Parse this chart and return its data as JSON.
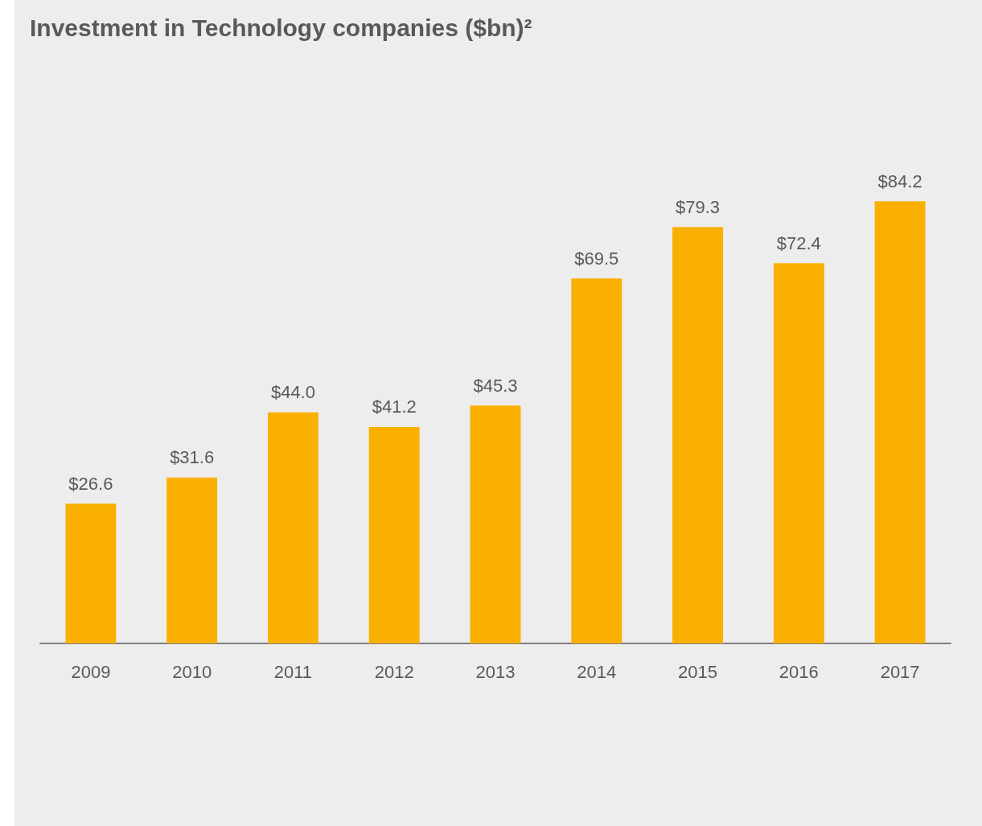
{
  "chart_data": {
    "type": "bar",
    "title": "Investment in Technology companies ($bn)²",
    "categories": [
      "2009",
      "2010",
      "2011",
      "2012",
      "2013",
      "2014",
      "2015",
      "2016",
      "2017"
    ],
    "values": [
      26.6,
      31.6,
      44.0,
      41.2,
      45.3,
      69.5,
      79.3,
      72.4,
      84.2
    ],
    "value_labels": [
      "$26.6",
      "$31.6",
      "$44.0",
      "$41.2",
      "$45.3",
      "$69.5",
      "$79.3",
      "$72.4",
      "$84.2"
    ],
    "color": "#f9b000",
    "grid": false
  }
}
